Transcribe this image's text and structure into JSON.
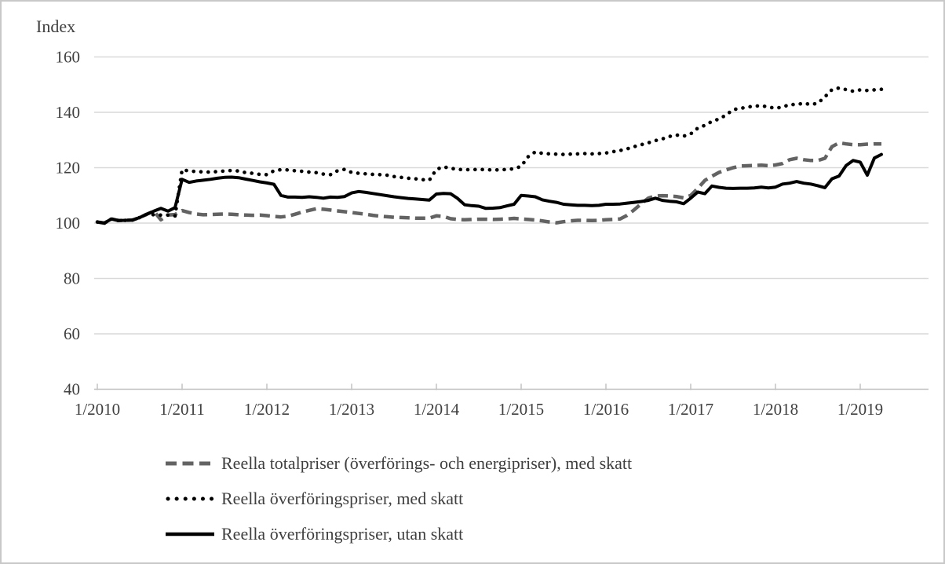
{
  "figure": {
    "border_color": "#c8c8c8",
    "background": "#ffffff",
    "text_color": "#404040",
    "gridline_color": "#d9d9d9",
    "axis_line_color": "#bfbfbf"
  },
  "chart_data": {
    "type": "line",
    "title": "",
    "ylabel": "Index",
    "xlabel": "",
    "ylim": [
      40,
      160
    ],
    "yticks": [
      40,
      60,
      80,
      100,
      120,
      140,
      160
    ],
    "grid": "horizontal",
    "legend_position": "below-left",
    "x_frequency": "monthly",
    "x_first_point": "1/2010",
    "x_last_point": "4/2019",
    "x_tick_labels": [
      "1/2010",
      "1/2011",
      "1/2012",
      "1/2013",
      "1/2014",
      "1/2015",
      "1/2016",
      "1/2017",
      "1/2018",
      "1/2019"
    ],
    "months_per_tick": 12,
    "series": [
      {
        "name": "Reella totalpriser (överförings- och energipriser), med skatt",
        "style": "dashed",
        "color": "#636363",
        "values": [
          100.4,
          100,
          101.5,
          100.9,
          101,
          101.1,
          102,
          103.2,
          104.3,
          101.2,
          102.9,
          103.1,
          104.5,
          103.8,
          103.3,
          103,
          103.1,
          103.2,
          103.3,
          103.2,
          103,
          102.9,
          102.8,
          102.9,
          102.7,
          102.4,
          102.2,
          102.5,
          103.2,
          104,
          104.6,
          105.2,
          105,
          104.7,
          104.4,
          104.1,
          103.8,
          103.5,
          103.2,
          102.8,
          102.5,
          102.3,
          102.1,
          102,
          101.9,
          101.8,
          101.8,
          101.8,
          102.6,
          102.4,
          101.6,
          101.3,
          101.2,
          101.3,
          101.4,
          101.4,
          101.3,
          101.4,
          101.5,
          101.7,
          101.5,
          101.3,
          101.1,
          100.8,
          100.4,
          100.1,
          100.5,
          100.8,
          101,
          101,
          100.9,
          101,
          101.2,
          101.3,
          101.5,
          102.8,
          104.8,
          107,
          109,
          109.8,
          109.9,
          109.8,
          109.6,
          109.1,
          110,
          112.5,
          115.4,
          116.9,
          118.3,
          119.2,
          120,
          120.6,
          120.7,
          120.8,
          120.9,
          120.7,
          121,
          121.5,
          122.9,
          123.4,
          122.9,
          122.6,
          122.6,
          123.4,
          127.6,
          129,
          128.6,
          128.3,
          128.3,
          128.5,
          128.6,
          128.6
        ]
      },
      {
        "name": "Reella överföringspriser, med skatt",
        "style": "dotted",
        "color": "#000000",
        "values": [
          100.4,
          100,
          101.5,
          100.9,
          101,
          101.1,
          102,
          103.2,
          103,
          102.9,
          102.9,
          102.6,
          119.3,
          118.8,
          118.6,
          118.5,
          118.4,
          118.6,
          118.8,
          119,
          118.8,
          118.2,
          118,
          117.6,
          117.5,
          118.9,
          119.3,
          119.2,
          118.9,
          118.7,
          118.4,
          118.2,
          117.7,
          117.5,
          118.9,
          119.4,
          118.3,
          118,
          117.8,
          117.6,
          117.5,
          117.3,
          116.8,
          116.5,
          116.2,
          116,
          115.7,
          115.5,
          119.4,
          120.3,
          119.8,
          119.4,
          119.3,
          119.3,
          119.4,
          119.3,
          119.2,
          119.2,
          119.4,
          119.6,
          120.5,
          124,
          125.7,
          125.2,
          125,
          124.9,
          124.8,
          124.9,
          125,
          125.1,
          125,
          125.1,
          125.3,
          125.8,
          126.2,
          126.8,
          127.6,
          128.3,
          129,
          129.8,
          130.4,
          131.3,
          131.8,
          131.4,
          132.2,
          134.3,
          135.3,
          136.7,
          137.6,
          139,
          141,
          141.4,
          141.9,
          142.2,
          142.4,
          141.9,
          141.5,
          141.9,
          142.8,
          142.8,
          143.3,
          142.8,
          143.3,
          145.6,
          148.2,
          148.8,
          148.2,
          147.6,
          148.1,
          147.9,
          148.1,
          148.3
        ]
      },
      {
        "name": "Reella överföringspriser, utan skatt",
        "style": "solid",
        "color": "#000000",
        "values": [
          100.4,
          100,
          101.5,
          100.9,
          101,
          101.1,
          102,
          103.2,
          104.3,
          105.3,
          104.3,
          105.6,
          115.8,
          114.7,
          115.2,
          115.5,
          115.8,
          116.2,
          116.5,
          116.6,
          116.4,
          115.9,
          115.4,
          114.9,
          114.5,
          114,
          110,
          109.4,
          109.4,
          109.3,
          109.5,
          109.3,
          109,
          109.4,
          109.3,
          109.6,
          110.9,
          111.4,
          111.1,
          110.7,
          110.3,
          109.9,
          109.5,
          109.2,
          108.9,
          108.7,
          108.5,
          108.3,
          110.5,
          110.7,
          110.6,
          108.9,
          106.6,
          106.3,
          106.1,
          105.3,
          105.4,
          105.6,
          106.2,
          106.8,
          110,
          109.8,
          109.5,
          108.4,
          107.9,
          107.5,
          106.8,
          106.6,
          106.4,
          106.4,
          106.3,
          106.4,
          106.8,
          106.8,
          106.9,
          107.2,
          107.5,
          107.8,
          108.2,
          109,
          108.2,
          107.9,
          107.7,
          107,
          109,
          111.2,
          110.6,
          113.4,
          112.9,
          112.6,
          112.5,
          112.6,
          112.6,
          112.7,
          113,
          112.7,
          113,
          114.1,
          114.4,
          115,
          114.4,
          114.1,
          113.5,
          112.8,
          116,
          117,
          120.8,
          122.6,
          122,
          117.3,
          123.5,
          124.8
        ]
      }
    ]
  }
}
